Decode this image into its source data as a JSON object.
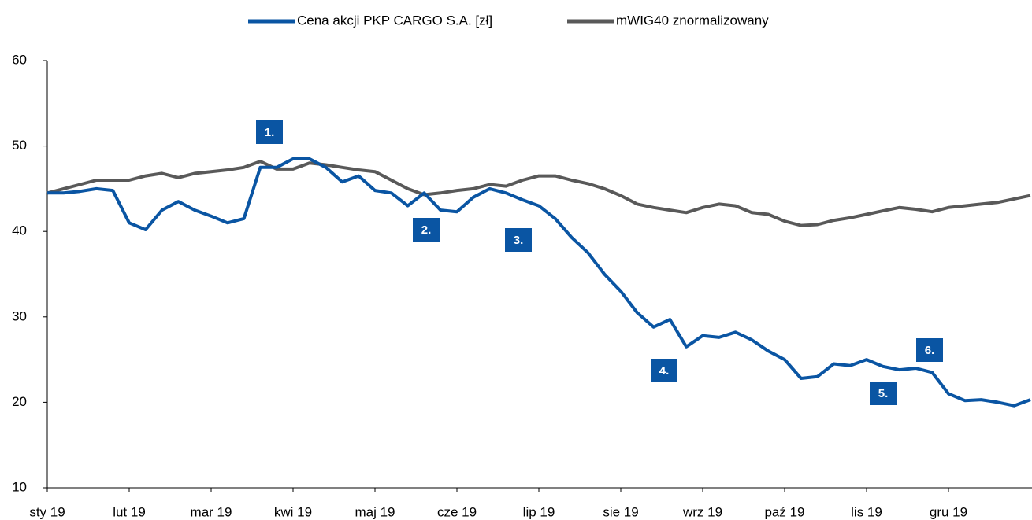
{
  "chart_data": {
    "type": "line",
    "categories": [
      "sty 19",
      null,
      null,
      null,
      null,
      "lut 19",
      null,
      null,
      null,
      null,
      "mar 19",
      null,
      null,
      null,
      null,
      "kwi 19",
      null,
      null,
      null,
      null,
      "maj 19",
      null,
      null,
      null,
      null,
      "cze 19",
      null,
      null,
      null,
      null,
      "lip 19",
      null,
      null,
      null,
      null,
      "sie 19",
      null,
      null,
      null,
      null,
      "wrz 19",
      null,
      null,
      null,
      null,
      "paź 19",
      null,
      null,
      null,
      null,
      "lis 19",
      null,
      null,
      null,
      null,
      "gru 19",
      null,
      null,
      null,
      null,
      null
    ],
    "series": [
      {
        "name": "Cena akcji PKP CARGO S.A. [zł]",
        "color": "#0a55a3",
        "values": [
          44.5,
          44.5,
          44.7,
          45,
          44.8,
          41,
          40.2,
          42.5,
          43.5,
          42.5,
          41.8,
          41,
          41.5,
          47.5,
          47.5,
          48.5,
          48.5,
          47.5,
          45.8,
          46.5,
          44.8,
          44.5,
          43,
          44.5,
          42.5,
          42.3,
          44,
          45,
          44.5,
          43.7,
          43,
          41.5,
          39.3,
          37.5,
          35,
          33,
          30.5,
          28.8,
          29.7,
          26.5,
          27.8,
          27.6,
          28.2,
          27.3,
          26,
          25,
          22.8,
          23,
          24.5,
          24.3,
          25,
          24.2,
          23.8,
          24,
          23.5,
          21,
          20.2,
          20.3,
          20,
          19.6,
          20.3
        ]
      },
      {
        "name": "mWIG40 znormalizowany",
        "color": "#595959",
        "values": [
          44.5,
          45,
          45.5,
          46,
          46,
          46,
          46.5,
          46.8,
          46.3,
          46.8,
          47,
          47.2,
          47.5,
          48.2,
          47.3,
          47.3,
          48,
          47.8,
          47.5,
          47.2,
          47,
          46,
          45,
          44.3,
          44.5,
          44.8,
          45,
          45.5,
          45.3,
          46,
          46.5,
          46.5,
          46,
          45.6,
          45,
          44.2,
          43.2,
          42.8,
          42.5,
          42.2,
          42.8,
          43.2,
          43,
          42.2,
          42,
          41.2,
          40.7,
          40.8,
          41.3,
          41.6,
          42,
          42.4,
          42.8,
          42.6,
          42.3,
          42.8,
          43,
          43.2,
          43.4,
          43.8,
          44.2
        ]
      }
    ],
    "ylim": [
      10,
      60
    ],
    "yticks": [
      10,
      20,
      30,
      40,
      50,
      60
    ],
    "annotations": [
      "1.",
      "2.",
      "3.",
      "4.",
      "5.",
      "6."
    ],
    "annotation_color": "#0a55a3"
  }
}
